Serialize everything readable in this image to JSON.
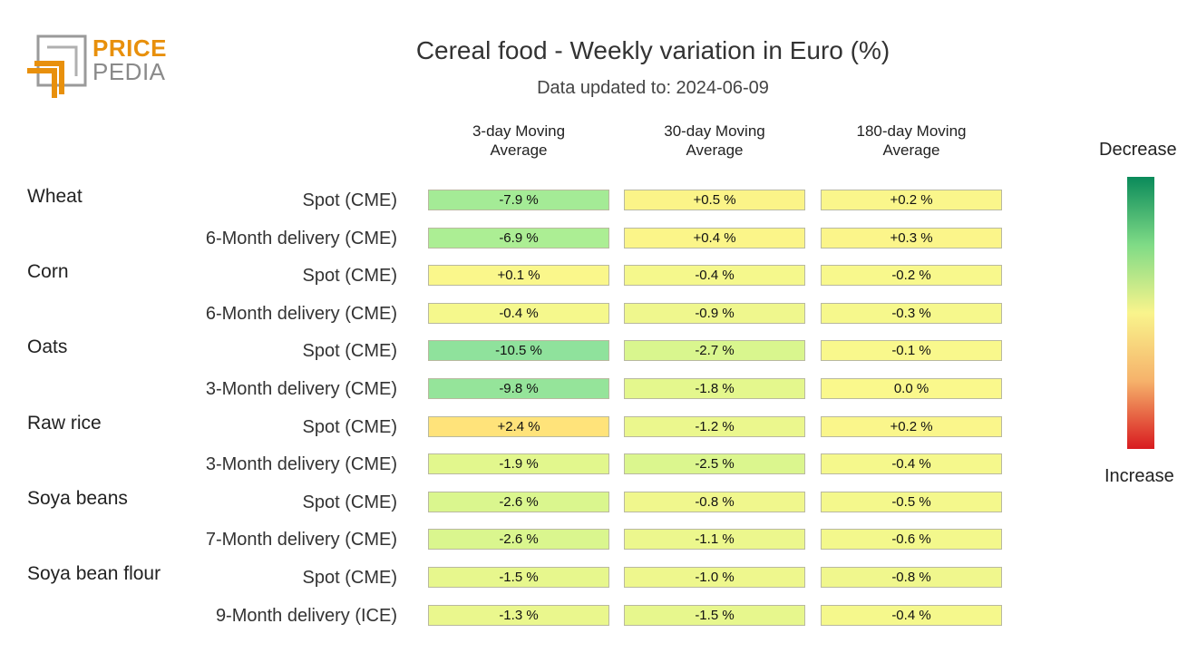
{
  "logo": {
    "word1": "PRICE",
    "word2": "PEDIA"
  },
  "title": "Cereal food - Weekly variation in Euro (%)",
  "subtitle": "Data updated to: 2024-06-09",
  "legend": {
    "top": "Decrease",
    "bottom": "Increase"
  },
  "colors": {
    "decrease_strong": "#0a8a5a",
    "neutral": "#f9f48c",
    "increase_strong": "#d81b20"
  },
  "chart_data": {
    "type": "table",
    "title": "Cereal food - Weekly variation in Euro (%)",
    "columns": [
      [
        "3-day Moving",
        "Average"
      ],
      [
        "30-day Moving",
        "Average"
      ],
      [
        "180-day Moving",
        "Average"
      ]
    ],
    "groups": [
      {
        "name": "Wheat",
        "rows": [
          {
            "label": "Spot (CME)",
            "values": [
              -7.9,
              0.5,
              0.2
            ],
            "text": [
              "-7.9 %",
              "+0.5 %",
              "+0.2 %"
            ]
          },
          {
            "label": "6-Month delivery (CME)",
            "values": [
              -6.9,
              0.4,
              0.3
            ],
            "text": [
              "-6.9 %",
              "+0.4 %",
              "+0.3 %"
            ]
          }
        ]
      },
      {
        "name": "Corn",
        "rows": [
          {
            "label": "Spot (CME)",
            "values": [
              0.1,
              -0.4,
              -0.2
            ],
            "text": [
              "+0.1 %",
              "-0.4 %",
              "-0.2 %"
            ]
          },
          {
            "label": "6-Month delivery (CME)",
            "values": [
              -0.4,
              -0.9,
              -0.3
            ],
            "text": [
              "-0.4 %",
              "-0.9 %",
              "-0.3 %"
            ]
          }
        ]
      },
      {
        "name": "Oats",
        "rows": [
          {
            "label": "Spot (CME)",
            "values": [
              -10.5,
              -2.7,
              -0.1
            ],
            "text": [
              "-10.5 %",
              "-2.7 %",
              "-0.1 %"
            ]
          },
          {
            "label": "3-Month delivery (CME)",
            "values": [
              -9.8,
              -1.8,
              0.0
            ],
            "text": [
              "-9.8 %",
              "-1.8 %",
              "0.0 %"
            ]
          }
        ]
      },
      {
        "name": "Raw rice",
        "rows": [
          {
            "label": "Spot (CME)",
            "values": [
              2.4,
              -1.2,
              0.2
            ],
            "text": [
              "+2.4 %",
              "-1.2 %",
              "+0.2 %"
            ]
          },
          {
            "label": "3-Month delivery (CME)",
            "values": [
              -1.9,
              -2.5,
              -0.4
            ],
            "text": [
              "-1.9 %",
              "-2.5 %",
              "-0.4 %"
            ]
          }
        ]
      },
      {
        "name": "Soya beans",
        "rows": [
          {
            "label": "Spot (CME)",
            "values": [
              -2.6,
              -0.8,
              -0.5
            ],
            "text": [
              "-2.6 %",
              "-0.8 %",
              "-0.5 %"
            ]
          },
          {
            "label": "7-Month delivery (CME)",
            "values": [
              -2.6,
              -1.1,
              -0.6
            ],
            "text": [
              "-2.6 %",
              "-1.1 %",
              "-0.6 %"
            ]
          }
        ]
      },
      {
        "name": "Soya bean flour",
        "rows": [
          {
            "label": "Spot (CME)",
            "values": [
              -1.5,
              -1.0,
              -0.8
            ],
            "text": [
              "-1.5 %",
              "-1.0 %",
              "-0.8 %"
            ]
          },
          {
            "label": "9-Month delivery (ICE)",
            "values": [
              -1.3,
              -1.5,
              -0.4
            ],
            "text": [
              "-1.3 %",
              "-1.5 %",
              "-0.4 %"
            ]
          }
        ]
      }
    ]
  }
}
